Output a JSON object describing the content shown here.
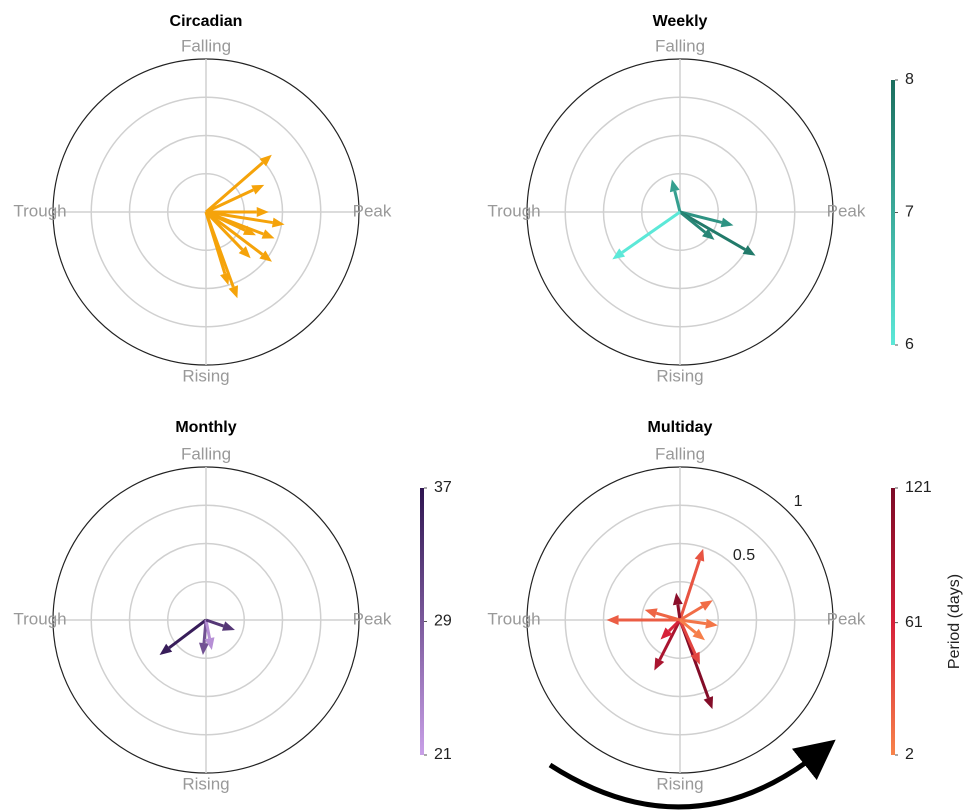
{
  "chart_data": [
    {
      "type": "polar-quiver",
      "title": "Circadian",
      "rlim": [
        0,
        1
      ],
      "rgrid": [
        0.25,
        0.5,
        0.75
      ],
      "theta_ticks": [
        {
          "value": 0,
          "label": "Peak"
        },
        {
          "value": 90,
          "label": "Falling"
        },
        {
          "value": 180,
          "label": "Trough"
        },
        {
          "value": 270,
          "label": "Rising"
        }
      ],
      "color": "#f5a30a",
      "theta": [
        41,
        25,
        -9,
        -21,
        -37,
        -25,
        -70,
        -46,
        0,
        -73
      ],
      "r": [
        0.57,
        0.42,
        0.52,
        0.48,
        0.54,
        0.36,
        0.6,
        0.42,
        0.41,
        0.5
      ]
    },
    {
      "type": "polar-quiver",
      "title": "Weekly",
      "rlim": [
        0,
        1
      ],
      "rgrid": [
        0.25,
        0.5,
        0.75
      ],
      "theta_ticks": [
        {
          "value": 0,
          "label": "Peak"
        },
        {
          "value": 90,
          "label": "Falling"
        },
        {
          "value": 180,
          "label": "Trough"
        },
        {
          "value": 270,
          "label": "Rising"
        }
      ],
      "theta": [
        104,
        -14,
        -30,
        -39,
        -145
      ],
      "r": [
        0.22,
        0.36,
        0.57,
        0.29,
        0.54
      ],
      "c": [
        7.2,
        7.4,
        7.8,
        7.6,
        6.0
      ],
      "colorbar": {
        "clim": [
          6,
          8
        ],
        "ticks": [
          6,
          7,
          8
        ],
        "cmap": [
          "#5ce8d8",
          "#1b6e5e"
        ]
      }
    },
    {
      "type": "polar-quiver",
      "title": "Monthly",
      "rlim": [
        0,
        1
      ],
      "rgrid": [
        0.25,
        0.5,
        0.75
      ],
      "theta_ticks": [
        {
          "value": 0,
          "label": "Peak"
        },
        {
          "value": 90,
          "label": "Falling"
        },
        {
          "value": 180,
          "label": "Trough"
        },
        {
          "value": 270,
          "label": "Rising"
        }
      ],
      "theta": [
        -143,
        -95,
        -79,
        -19
      ],
      "r": [
        0.38,
        0.23,
        0.2,
        0.2
      ],
      "c": [
        36,
        30,
        23,
        33
      ],
      "colorbar": {
        "clim": [
          21,
          37
        ],
        "ticks": [
          21,
          29,
          37
        ],
        "cmap": [
          "#c9a0e8",
          "#2e1450"
        ]
      }
    },
    {
      "type": "polar-quiver",
      "title": "Multiday",
      "rlim": [
        0,
        1
      ],
      "rgrid": [
        0.25,
        0.5,
        0.75
      ],
      "rticks": [
        0.5,
        1
      ],
      "theta_ticks": [
        {
          "value": 0,
          "label": "Peak"
        },
        {
          "value": 90,
          "label": "Falling"
        },
        {
          "value": 180,
          "label": "Trough"
        },
        {
          "value": 270,
          "label": "Rising"
        }
      ],
      "theta": [
        72,
        -70,
        180,
        98,
        -117,
        -8,
        31,
        -66,
        -135,
        -39,
        164
      ],
      "r": [
        0.49,
        0.62,
        0.48,
        0.18,
        0.37,
        0.25,
        0.25,
        0.32,
        0.18,
        0.21,
        0.24
      ],
      "c": [
        30,
        115,
        25,
        110,
        90,
        10,
        15,
        40,
        60,
        5,
        20
      ],
      "colorbar": {
        "clim": [
          2,
          121
        ],
        "ticks": [
          2,
          61,
          121
        ],
        "label": "Period (days)",
        "cmap": [
          "#f8834a",
          "#d6203a",
          "#7a0a26"
        ]
      }
    }
  ]
}
